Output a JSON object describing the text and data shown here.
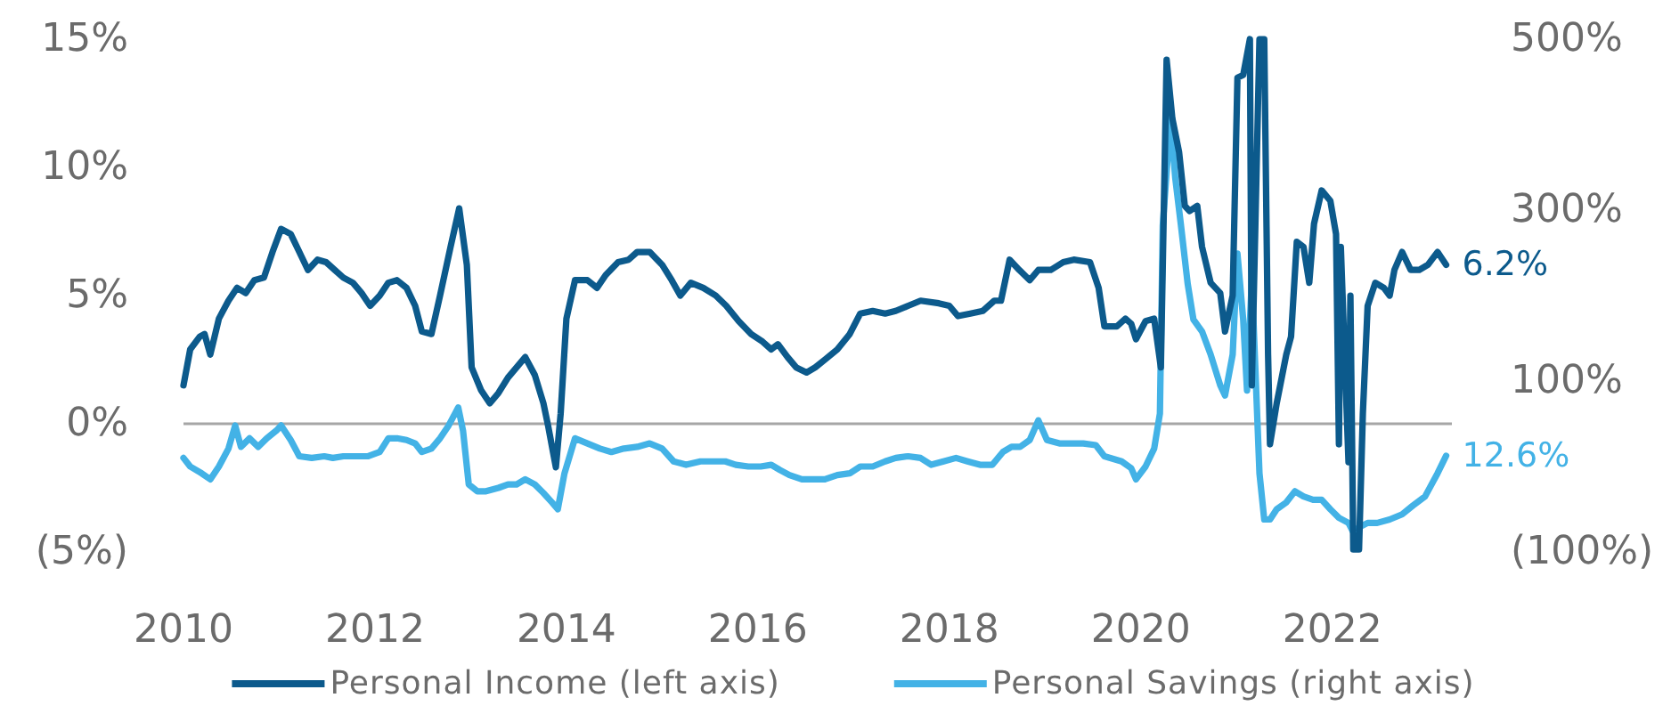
{
  "chart_data": {
    "type": "line",
    "xlim": [
      2010,
      2023.25
    ],
    "xticks": [
      2010,
      2012,
      2014,
      2016,
      2018,
      2020,
      2022
    ],
    "ylim": [
      -5,
      15
    ],
    "yticks": [
      {
        "value": -5,
        "label": "(5%)"
      },
      {
        "value": 0,
        "label": "0%"
      },
      {
        "value": 5,
        "label": "5%"
      },
      {
        "value": 10,
        "label": "10%"
      },
      {
        "value": 15,
        "label": "15%"
      }
    ],
    "y2lim": [
      -100,
      500
    ],
    "y2ticks": [
      {
        "value": -100,
        "label": "(100%)"
      },
      {
        "value": 100,
        "label": "100%"
      },
      {
        "value": 300,
        "label": "300%"
      },
      {
        "value": 500,
        "label": "500%"
      }
    ],
    "ref_lines": [
      {
        "axis": "y",
        "value": 0,
        "color": "#a6a6a6"
      }
    ],
    "legend": "bottom",
    "series": [
      {
        "name": "Personal Income (left axis)",
        "color": "#0c5a8c",
        "x": [
          2010.0,
          2010.07,
          2010.17,
          2010.22,
          2010.28,
          2010.37,
          2010.47,
          2010.56,
          2010.65,
          2010.74,
          2010.84,
          2010.93,
          2011.02,
          2011.12,
          2011.21,
          2011.3,
          2011.4,
          2011.49,
          2011.58,
          2011.67,
          2011.77,
          2011.86,
          2011.95,
          2012.05,
          2012.14,
          2012.23,
          2012.33,
          2012.42,
          2012.49,
          2012.59,
          2012.68,
          2012.79,
          2012.88,
          2012.96,
          2013.01,
          2013.11,
          2013.2,
          2013.29,
          2013.39,
          2013.48,
          2013.57,
          2013.67,
          2013.76,
          2013.81,
          2013.89,
          2013.94,
          2014.0,
          2014.09,
          2014.22,
          2014.32,
          2014.41,
          2014.54,
          2014.65,
          2014.74,
          2014.87,
          2015.0,
          2015.1,
          2015.19,
          2015.3,
          2015.43,
          2015.56,
          2015.67,
          2015.8,
          2015.93,
          2016.05,
          2016.14,
          2016.21,
          2016.31,
          2016.4,
          2016.51,
          2016.6,
          2016.7,
          2016.83,
          2016.96,
          2017.07,
          2017.2,
          2017.33,
          2017.44,
          2017.57,
          2017.7,
          2017.89,
          2018.0,
          2018.09,
          2018.22,
          2018.35,
          2018.47,
          2018.54,
          2018.63,
          2018.73,
          2018.84,
          2018.93,
          2019.06,
          2019.19,
          2019.3,
          2019.47,
          2019.56,
          2019.62,
          2019.75,
          2019.84,
          2019.9,
          2019.95,
          2020.05,
          2020.14,
          2020.21,
          2020.27,
          2020.33,
          2020.4,
          2020.46,
          2020.51,
          2020.59,
          2020.64,
          2020.73,
          2020.83,
          2020.88,
          2020.96,
          2021.01,
          2021.07,
          2021.14,
          2021.16,
          2021.24,
          2021.29,
          2021.33,
          2021.35,
          2021.42,
          2021.52,
          2021.57,
          2021.63,
          2021.7,
          2021.76,
          2021.81,
          2021.89,
          2021.98,
          2022.04,
          2022.07,
          2022.09,
          2022.17,
          2022.19,
          2022.22,
          2022.28,
          2022.32,
          2022.37,
          2022.45,
          2022.54,
          2022.6,
          2022.65,
          2022.73,
          2022.82,
          2022.91,
          2023.0,
          2023.1,
          2023.19
        ],
        "values": [
          1.5,
          2.9,
          3.4,
          3.5,
          2.7,
          4.1,
          4.8,
          5.3,
          5.1,
          5.6,
          5.7,
          6.7,
          7.6,
          7.4,
          6.7,
          6.0,
          6.4,
          6.3,
          6.0,
          5.7,
          5.5,
          5.1,
          4.6,
          5.0,
          5.5,
          5.6,
          5.3,
          4.6,
          3.6,
          3.5,
          5.0,
          6.9,
          8.4,
          6.2,
          2.2,
          1.3,
          0.8,
          1.2,
          1.8,
          2.2,
          2.6,
          1.9,
          0.8,
          -0.1,
          -1.7,
          0.4,
          4.1,
          5.6,
          5.6,
          5.3,
          5.8,
          6.3,
          6.4,
          6.7,
          6.7,
          6.2,
          5.6,
          5.0,
          5.5,
          5.3,
          5.0,
          4.6,
          4.0,
          3.5,
          3.2,
          2.9,
          3.1,
          2.6,
          2.2,
          2.0,
          2.2,
          2.5,
          2.9,
          3.5,
          4.3,
          4.4,
          4.3,
          4.4,
          4.6,
          4.8,
          4.7,
          4.6,
          4.2,
          4.3,
          4.4,
          4.8,
          4.8,
          6.4,
          6.0,
          5.6,
          6.0,
          6.0,
          6.3,
          6.4,
          6.3,
          5.3,
          3.8,
          3.8,
          4.1,
          3.9,
          3.3,
          4.0,
          4.1,
          2.2,
          14.2,
          11.9,
          10.6,
          8.5,
          8.3,
          8.5,
          6.9,
          5.5,
          5.1,
          3.6,
          5.0,
          13.5,
          13.6,
          15,
          1.5,
          15,
          15,
          2.7,
          -0.8,
          0.8,
          2.7,
          3.4,
          7.1,
          6.9,
          5.5,
          7.8,
          9.1,
          8.7,
          7.4,
          -0.8,
          6.9,
          -1.5,
          5.0,
          -4.9,
          -4.9,
          0.4,
          4.6,
          5.5,
          5.3,
          5.0,
          6.0,
          6.7,
          6.0,
          6.0,
          6.2,
          6.7,
          6.2
        ],
        "value_labels": [
          null,
          null,
          null,
          null,
          null,
          null,
          null,
          null,
          null,
          null,
          null,
          null,
          null,
          null,
          null,
          null,
          null,
          null,
          null,
          null,
          null,
          null,
          null,
          null,
          null,
          null,
          null,
          null,
          null,
          null,
          null,
          null,
          null,
          null,
          null,
          null,
          null,
          null,
          null,
          null,
          null,
          null,
          null,
          null,
          null,
          null,
          null,
          null,
          null,
          null,
          null,
          null,
          null,
          null,
          null,
          null,
          null,
          null,
          null,
          null,
          null,
          null,
          null,
          null,
          null,
          null,
          null,
          null,
          null,
          null,
          null,
          null,
          null,
          null,
          null,
          null,
          null,
          null,
          null,
          null,
          null,
          null,
          null,
          null,
          null,
          null,
          null,
          null,
          null,
          null,
          null,
          null,
          null,
          null,
          null,
          null,
          null,
          null,
          null,
          null,
          null,
          null,
          null,
          null,
          null,
          null,
          null,
          null,
          null,
          null,
          null,
          null,
          null,
          null,
          null,
          null,
          null,
          null,
          null,
          null,
          null,
          null,
          null,
          null,
          null,
          null,
          null,
          null,
          null,
          null,
          null,
          null,
          null,
          null,
          null,
          null,
          null,
          null,
          null,
          null,
          null,
          null,
          null,
          null,
          null,
          null,
          null,
          null,
          null,
          null,
          "6.2%"
        ]
      },
      {
        "name": "Personal Savings (right axis)",
        "color": "#43b2e6",
        "axis": "y2",
        "x": [
          2010.0,
          2010.07,
          2010.19,
          2010.28,
          2010.37,
          2010.47,
          2010.54,
          2010.6,
          2010.69,
          2010.78,
          2010.87,
          2010.97,
          2011.02,
          2011.12,
          2011.21,
          2011.34,
          2011.47,
          2011.56,
          2011.67,
          2011.8,
          2011.93,
          2012.05,
          2012.14,
          2012.23,
          2012.33,
          2012.42,
          2012.49,
          2012.59,
          2012.68,
          2012.77,
          2012.87,
          2012.92,
          2012.98,
          2013.07,
          2013.16,
          2013.29,
          2013.39,
          2013.48,
          2013.57,
          2013.67,
          2013.76,
          2013.85,
          2013.91,
          2013.98,
          2014.09,
          2014.22,
          2014.35,
          2014.47,
          2014.6,
          2014.74,
          2014.87,
          2015.0,
          2015.12,
          2015.25,
          2015.4,
          2015.53,
          2015.66,
          2015.77,
          2015.9,
          2016.03,
          2016.14,
          2016.23,
          2016.33,
          2016.46,
          2016.59,
          2016.7,
          2016.83,
          2016.96,
          2017.07,
          2017.2,
          2017.33,
          2017.44,
          2017.57,
          2017.7,
          2017.81,
          2017.94,
          2018.07,
          2018.19,
          2018.32,
          2018.45,
          2018.56,
          2018.65,
          2018.74,
          2018.84,
          2018.93,
          2019.02,
          2019.15,
          2019.28,
          2019.4,
          2019.53,
          2019.62,
          2019.8,
          2019.9,
          2019.95,
          2020.05,
          2020.14,
          2020.2,
          2020.23,
          2020.31,
          2020.36,
          2020.42,
          2020.49,
          2020.55,
          2020.64,
          2020.73,
          2020.83,
          2020.88,
          2020.96,
          2021.01,
          2021.07,
          2021.11,
          2021.16,
          2021.24,
          2021.29,
          2021.35,
          2021.42,
          2021.52,
          2021.61,
          2021.7,
          2021.8,
          2021.89,
          2021.98,
          2022.07,
          2022.17,
          2022.22,
          2022.28,
          2022.37,
          2022.47,
          2022.6,
          2022.73,
          2022.84,
          2022.97,
          2023.1,
          2023.19
        ],
        "values": [
          10,
          0,
          -8,
          -15,
          0,
          21,
          48,
          23,
          33,
          23,
          33,
          42,
          48,
          31,
          12,
          10,
          12,
          10,
          12,
          12,
          12,
          17,
          33,
          33,
          31,
          27,
          17,
          21,
          33,
          48,
          69,
          42,
          -21,
          -29,
          -29,
          -25,
          -21,
          -21,
          -15,
          -21,
          -31,
          -42,
          -50,
          -8,
          33,
          27,
          21,
          17,
          21,
          23,
          27,
          21,
          6,
          2,
          6,
          6,
          6,
          2,
          0,
          0,
          2,
          -4,
          -10,
          -15,
          -15,
          -15,
          -10,
          -8,
          0,
          0,
          6,
          10,
          12,
          10,
          2,
          6,
          10,
          6,
          2,
          2,
          17,
          23,
          23,
          31,
          54,
          31,
          27,
          27,
          27,
          25,
          12,
          6,
          -2,
          -15,
          0,
          21,
          62,
          282,
          407,
          338,
          282,
          214,
          172,
          158,
          131,
          95,
          83,
          131,
          249,
          172,
          89,
          220,
          -8,
          -62,
          -62,
          -50,
          -42,
          -29,
          -35,
          -39,
          -39,
          -50,
          -60,
          -66,
          -77,
          -71,
          -66,
          -66,
          -62,
          -56,
          -46,
          -35,
          -8,
          12.6
        ],
        "value_labels": [
          null,
          null,
          null,
          null,
          null,
          null,
          null,
          null,
          null,
          null,
          null,
          null,
          null,
          null,
          null,
          null,
          null,
          null,
          null,
          null,
          null,
          null,
          null,
          null,
          null,
          null,
          null,
          null,
          null,
          null,
          null,
          null,
          null,
          null,
          null,
          null,
          null,
          null,
          null,
          null,
          null,
          null,
          null,
          null,
          null,
          null,
          null,
          null,
          null,
          null,
          null,
          null,
          null,
          null,
          null,
          null,
          null,
          null,
          null,
          null,
          null,
          null,
          null,
          null,
          null,
          null,
          null,
          null,
          null,
          null,
          null,
          null,
          null,
          null,
          null,
          null,
          null,
          null,
          null,
          null,
          null,
          null,
          null,
          null,
          null,
          null,
          null,
          null,
          null,
          null,
          null,
          null,
          null,
          null,
          null,
          null,
          null,
          null,
          null,
          null,
          null,
          null,
          null,
          null,
          null,
          null,
          null,
          null,
          null,
          null,
          null,
          null,
          null,
          null,
          null,
          null,
          null,
          null,
          null,
          null,
          null,
          null,
          null,
          null,
          null,
          null,
          null,
          null,
          null,
          null,
          null,
          null,
          null,
          "12.6%"
        ]
      }
    ]
  }
}
